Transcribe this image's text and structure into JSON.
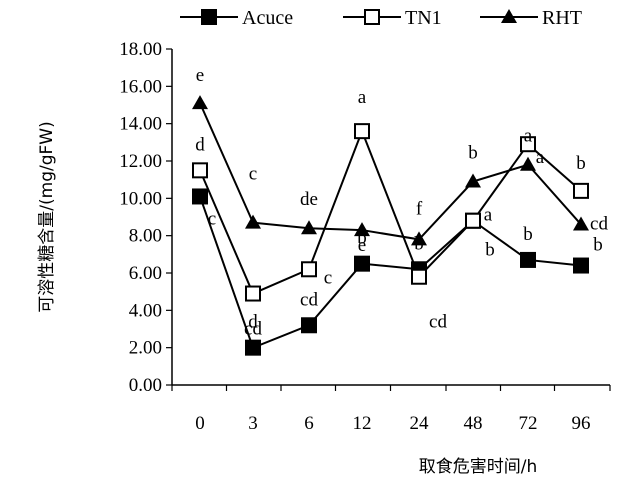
{
  "chart_data": {
    "type": "line",
    "title": "",
    "xlabel": "取食危害时间/h",
    "ylabel": "可溶性糖含量/(mg/gFW)",
    "categories": [
      "0",
      "3",
      "6",
      "12",
      "24",
      "48",
      "72",
      "96"
    ],
    "ylim": [
      0,
      18
    ],
    "yticks": [
      "0.00",
      "2.00",
      "4.00",
      "6.00",
      "8.00",
      "10.00",
      "12.00",
      "14.00",
      "16.00",
      "18.00"
    ],
    "grid": false,
    "legend_position": "top",
    "series": [
      {
        "name": "Acuce",
        "marker": "square-filled",
        "values": [
          10.1,
          2.0,
          3.2,
          6.5,
          6.2,
          8.8,
          6.7,
          6.4
        ],
        "labels": [
          "c",
          "d",
          "cd",
          "b",
          "b",
          "b",
          "b",
          "b"
        ]
      },
      {
        "name": "TN1",
        "marker": "square-open",
        "values": [
          11.5,
          4.9,
          6.2,
          13.6,
          5.8,
          8.8,
          12.9,
          10.4
        ],
        "labels": [
          "d",
          "cd",
          "c",
          "a",
          "cd",
          "a",
          "a",
          "b"
        ]
      },
      {
        "name": "RHT",
        "marker": "triangle-filled",
        "values": [
          15.1,
          8.7,
          8.4,
          8.3,
          7.8,
          10.9,
          11.8,
          8.6
        ],
        "labels": [
          "e",
          "c",
          "de",
          "e",
          "f",
          "b",
          "a",
          "cd"
        ]
      }
    ]
  }
}
